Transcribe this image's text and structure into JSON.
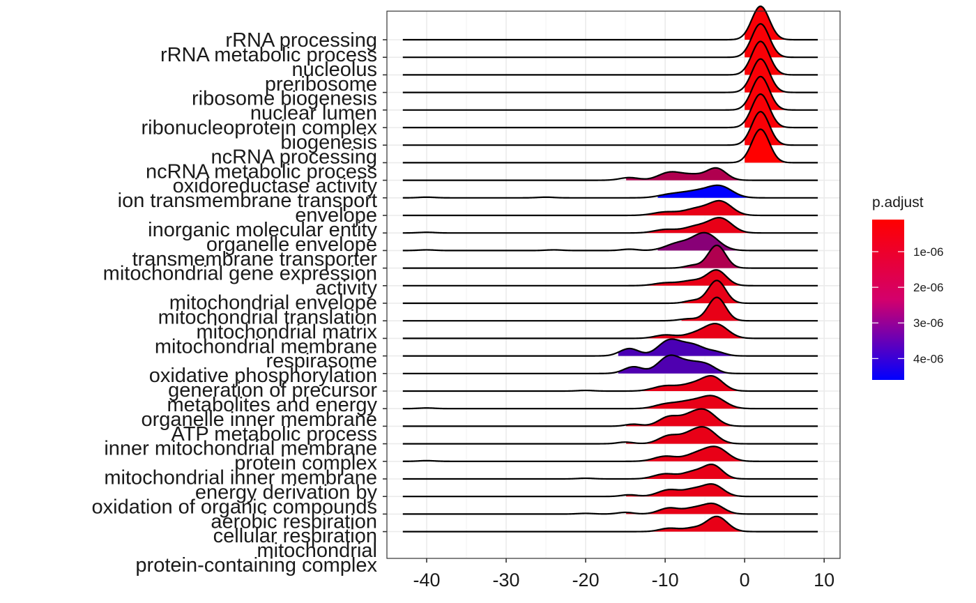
{
  "chart_data": {
    "type": "ridgeline",
    "xlim": [
      -45,
      12
    ],
    "x_ticks": [
      -40,
      -30,
      -20,
      -10,
      0,
      10
    ],
    "x_tick_labels": [
      "-40",
      "-30",
      "-20",
      "-10",
      "0",
      "10"
    ],
    "grid": true,
    "theme": "bw",
    "legend": {
      "title": "p.adjust",
      "position": "right",
      "ticks": [
        1e-06,
        2e-06,
        3e-06,
        4e-06
      ],
      "tick_labels": [
        "1e-06",
        "2e-06",
        "3e-06",
        "4e-06"
      ],
      "min": 1e-07,
      "max": 4.6e-06,
      "color_low": "#FF0000",
      "color_high": "#0000FF"
    },
    "category_labels": [
      "rRNA processing",
      "rRNA metabolic process",
      "nucleolus",
      "preribosome",
      "ribosome biogenesis",
      "nuclear lumen",
      "ribonucleoprotein complex",
      "biogenesis",
      "ncRNA processing",
      "ncRNA metabolic process",
      "oxidoreductase activity",
      "ion transmembrane transport",
      "envelope",
      "inorganic molecular entity",
      "organelle envelope",
      "transmembrane transporter",
      "mitochondrial gene expression",
      "activity",
      "mitochondrial envelope",
      "mitochondrial translation",
      "mitochondrial matrix",
      "mitochondrial membrane",
      "respirasome",
      "oxidative phosphorylation",
      "generation of precursor",
      "metabolites and energy",
      "organelle inner membrane",
      "ATP metabolic process",
      "inner mitochondrial membrane",
      "protein complex",
      "mitochondrial inner membrane",
      "energy derivation by",
      "oxidation of organic compounds",
      "aerobic respiration",
      "cellular respiration",
      "mitochondrial",
      "protein-containing complex"
    ],
    "series": [
      {
        "p_adjust": 2e-07,
        "x_min": -43,
        "x_max": 9.2,
        "fill_from": 0,
        "peaks": [
          {
            "mu": 2,
            "sd": 1.1,
            "h": 1
          }
        ]
      },
      {
        "p_adjust": 2e-07,
        "x_min": -43,
        "x_max": 9.2,
        "fill_from": 0,
        "peaks": [
          {
            "mu": 2,
            "sd": 1.1,
            "h": 1
          }
        ]
      },
      {
        "p_adjust": 2e-07,
        "x_min": -43,
        "x_max": 9.2,
        "fill_from": 0,
        "peaks": [
          {
            "mu": 2,
            "sd": 1.1,
            "h": 1
          }
        ]
      },
      {
        "p_adjust": 2e-07,
        "x_min": -43,
        "x_max": 9.2,
        "fill_from": 0,
        "peaks": [
          {
            "mu": 2,
            "sd": 1.1,
            "h": 1
          }
        ]
      },
      {
        "p_adjust": 2e-07,
        "x_min": -43,
        "x_max": 9.2,
        "fill_from": 0,
        "peaks": [
          {
            "mu": 2,
            "sd": 1.1,
            "h": 1
          }
        ]
      },
      {
        "p_adjust": 2e-07,
        "x_min": -43,
        "x_max": 9.2,
        "fill_from": 0,
        "peaks": [
          {
            "mu": 2,
            "sd": 1.1,
            "h": 1
          }
        ]
      },
      {
        "p_adjust": 2e-07,
        "x_min": -43,
        "x_max": 9.2,
        "fill_from": 0,
        "peaks": [
          {
            "mu": 2,
            "sd": 1.1,
            "h": 1
          }
        ]
      },
      {
        "p_adjust": 1e-07,
        "x_min": -43,
        "x_max": 9.2,
        "fill_from": 0,
        "peaks": [
          {
            "mu": 2,
            "sd": 1.1,
            "h": 1
          }
        ]
      },
      {
        "p_adjust": 1.5e-06,
        "x_min": -43,
        "x_max": 9.2,
        "fill_from": -15,
        "peaks": [
          {
            "mu": -3.5,
            "sd": 1.2,
            "h": 0.34
          },
          {
            "mu": -9.5,
            "sd": 1.4,
            "h": 0.22
          },
          {
            "mu": -6.5,
            "sd": 1.6,
            "h": 0.16
          },
          {
            "mu": -14.5,
            "sd": 1.2,
            "h": 0.08
          }
        ]
      },
      {
        "p_adjust": 4.6e-06,
        "x_min": -43,
        "x_max": 9.2,
        "fill_from": -11,
        "peaks": [
          {
            "mu": -3,
            "sd": 1.5,
            "h": 0.3
          },
          {
            "mu": -6,
            "sd": 2,
            "h": 0.2
          },
          {
            "mu": -9.5,
            "sd": 1.5,
            "h": 0.08
          },
          {
            "mu": -40,
            "sd": 1,
            "h": 0.02
          },
          {
            "mu": -25,
            "sd": 1,
            "h": 0.02
          }
        ]
      },
      {
        "p_adjust": 5e-07,
        "x_min": -43,
        "x_max": 9.2,
        "fill_from": -15,
        "peaks": [
          {
            "mu": -3,
            "sd": 1.4,
            "h": 0.4
          },
          {
            "mu": -6,
            "sd": 1.6,
            "h": 0.2
          },
          {
            "mu": -10,
            "sd": 1.5,
            "h": 0.1
          }
        ]
      },
      {
        "p_adjust": 5e-07,
        "x_min": -43,
        "x_max": 9.2,
        "fill_from": -15,
        "peaks": [
          {
            "mu": -3,
            "sd": 1.4,
            "h": 0.42
          },
          {
            "mu": -6,
            "sd": 1.6,
            "h": 0.2
          },
          {
            "mu": -10,
            "sd": 1.4,
            "h": 0.1
          },
          {
            "mu": -40,
            "sd": 1,
            "h": 0.02
          }
        ]
      },
      {
        "p_adjust": 2.2e-06,
        "x_min": -43,
        "x_max": 9.2,
        "fill_from": -11,
        "peaks": [
          {
            "mu": -5,
            "sd": 1.6,
            "h": 0.52
          },
          {
            "mu": -8.5,
            "sd": 1.5,
            "h": 0.2
          },
          {
            "mu": -14.5,
            "sd": 1,
            "h": 0.04
          },
          {
            "mu": -40,
            "sd": 1,
            "h": 0.02
          },
          {
            "mu": -24,
            "sd": 1,
            "h": 0.02
          }
        ]
      },
      {
        "p_adjust": 1.5e-06,
        "x_min": -43,
        "x_max": 9.2,
        "fill_from": -8,
        "peaks": [
          {
            "mu": -3.5,
            "sd": 1.1,
            "h": 0.68
          },
          {
            "mu": -6.5,
            "sd": 1,
            "h": 0.08
          }
        ]
      },
      {
        "p_adjust": 5e-07,
        "x_min": -43,
        "x_max": 9.2,
        "fill_from": -15,
        "peaks": [
          {
            "mu": -3.5,
            "sd": 1.2,
            "h": 0.45
          },
          {
            "mu": -6.5,
            "sd": 1.5,
            "h": 0.15
          },
          {
            "mu": -10,
            "sd": 1.4,
            "h": 0.08
          }
        ]
      },
      {
        "p_adjust": 5e-07,
        "x_min": -43,
        "x_max": 9.2,
        "fill_from": -8,
        "peaks": [
          {
            "mu": -3.5,
            "sd": 1.1,
            "h": 0.68
          },
          {
            "mu": -6.5,
            "sd": 1,
            "h": 0.08
          }
        ]
      },
      {
        "p_adjust": 5e-07,
        "x_min": -43,
        "x_max": 9.2,
        "fill_from": -8,
        "peaks": [
          {
            "mu": -3.5,
            "sd": 1.1,
            "h": 0.7
          },
          {
            "mu": -7,
            "sd": 1.2,
            "h": 0.06
          }
        ]
      },
      {
        "p_adjust": 5e-07,
        "x_min": -43,
        "x_max": 9.2,
        "fill_from": -15,
        "peaks": [
          {
            "mu": -3.5,
            "sd": 1.4,
            "h": 0.4
          },
          {
            "mu": -6,
            "sd": 1.5,
            "h": 0.15
          },
          {
            "mu": -10,
            "sd": 1.3,
            "h": 0.1
          }
        ]
      },
      {
        "p_adjust": 3.3e-06,
        "x_min": -43,
        "x_max": 9.2,
        "fill_from": -16,
        "peaks": [
          {
            "mu": -9.5,
            "sd": 1.4,
            "h": 0.45
          },
          {
            "mu": -6.5,
            "sd": 1.5,
            "h": 0.32
          },
          {
            "mu": -14.5,
            "sd": 1.2,
            "h": 0.22
          },
          {
            "mu": -3.5,
            "sd": 1.1,
            "h": 0.1
          }
        ]
      },
      {
        "p_adjust": 3.2e-06,
        "x_min": -43,
        "x_max": 9.2,
        "fill_from": -16,
        "peaks": [
          {
            "mu": -9.5,
            "sd": 1.4,
            "h": 0.5
          },
          {
            "mu": -6.5,
            "sd": 1.5,
            "h": 0.3
          },
          {
            "mu": -14,
            "sd": 1.2,
            "h": 0.2
          },
          {
            "mu": -4.5,
            "sd": 1.1,
            "h": 0.15
          }
        ]
      },
      {
        "p_adjust": 5e-07,
        "x_min": -43,
        "x_max": 9.2,
        "fill_from": -15,
        "peaks": [
          {
            "mu": -4,
            "sd": 1.3,
            "h": 0.4
          },
          {
            "mu": -6.5,
            "sd": 1.5,
            "h": 0.2
          },
          {
            "mu": -10,
            "sd": 1.5,
            "h": 0.15
          },
          {
            "mu": -20,
            "sd": 1,
            "h": 0.02
          }
        ]
      },
      {
        "p_adjust": 5e-07,
        "x_min": -43,
        "x_max": 9.2,
        "fill_from": -15,
        "peaks": [
          {
            "mu": -4,
            "sd": 1.5,
            "h": 0.35
          },
          {
            "mu": -7,
            "sd": 1.6,
            "h": 0.2
          },
          {
            "mu": -10,
            "sd": 1.4,
            "h": 0.12
          },
          {
            "mu": -40,
            "sd": 1,
            "h": 0.02
          }
        ]
      },
      {
        "p_adjust": 5e-07,
        "x_min": -43,
        "x_max": 9.2,
        "fill_from": -15,
        "peaks": [
          {
            "mu": -5,
            "sd": 1.4,
            "h": 0.45
          },
          {
            "mu": -9.5,
            "sd": 1.3,
            "h": 0.28
          },
          {
            "mu": -7,
            "sd": 1.2,
            "h": 0.2
          },
          {
            "mu": -14,
            "sd": 1,
            "h": 0.06
          }
        ]
      },
      {
        "p_adjust": 5e-07,
        "x_min": -43,
        "x_max": 9.2,
        "fill_from": -15,
        "peaks": [
          {
            "mu": -5,
            "sd": 1.4,
            "h": 0.45
          },
          {
            "mu": -9.5,
            "sd": 1.3,
            "h": 0.24
          },
          {
            "mu": -7,
            "sd": 1.2,
            "h": 0.18
          },
          {
            "mu": -15,
            "sd": 1,
            "h": 0.05
          }
        ]
      },
      {
        "p_adjust": 5e-07,
        "x_min": -43,
        "x_max": 9.2,
        "fill_from": -15,
        "peaks": [
          {
            "mu": -3.5,
            "sd": 1.4,
            "h": 0.38
          },
          {
            "mu": -6,
            "sd": 1.5,
            "h": 0.22
          },
          {
            "mu": -10,
            "sd": 1.4,
            "h": 0.15
          },
          {
            "mu": -40,
            "sd": 1,
            "h": 0.02
          }
        ]
      },
      {
        "p_adjust": 5e-07,
        "x_min": -43,
        "x_max": 9.2,
        "fill_from": -15,
        "peaks": [
          {
            "mu": -4,
            "sd": 1.2,
            "h": 0.4
          },
          {
            "mu": -6.5,
            "sd": 1.3,
            "h": 0.2
          },
          {
            "mu": -10,
            "sd": 1.4,
            "h": 0.15
          },
          {
            "mu": -20,
            "sd": 1,
            "h": 0.02
          }
        ]
      },
      {
        "p_adjust": 5e-07,
        "x_min": -43,
        "x_max": 9.2,
        "fill_from": -15,
        "peaks": [
          {
            "mu": -4,
            "sd": 1.3,
            "h": 0.35
          },
          {
            "mu": -9.5,
            "sd": 1.4,
            "h": 0.2
          },
          {
            "mu": -6.5,
            "sd": 1.2,
            "h": 0.18
          },
          {
            "mu": -14.5,
            "sd": 1,
            "h": 0.05
          }
        ]
      },
      {
        "p_adjust": 5e-07,
        "x_min": -43,
        "x_max": 9.2,
        "fill_from": -15,
        "peaks": [
          {
            "mu": -4,
            "sd": 1.3,
            "h": 0.3
          },
          {
            "mu": -9.5,
            "sd": 1.3,
            "h": 0.18
          },
          {
            "mu": -6.5,
            "sd": 1.2,
            "h": 0.15
          },
          {
            "mu": -15,
            "sd": 1,
            "h": 0.05
          },
          {
            "mu": -20,
            "sd": 1,
            "h": 0.02
          }
        ]
      },
      {
        "p_adjust": 5e-07,
        "x_min": -43,
        "x_max": 9.2,
        "fill_from": -12,
        "peaks": [
          {
            "mu": -3.5,
            "sd": 1.3,
            "h": 0.45
          },
          {
            "mu": -9.5,
            "sd": 1.2,
            "h": 0.1
          },
          {
            "mu": -6.5,
            "sd": 1.2,
            "h": 0.1
          }
        ]
      }
    ]
  }
}
